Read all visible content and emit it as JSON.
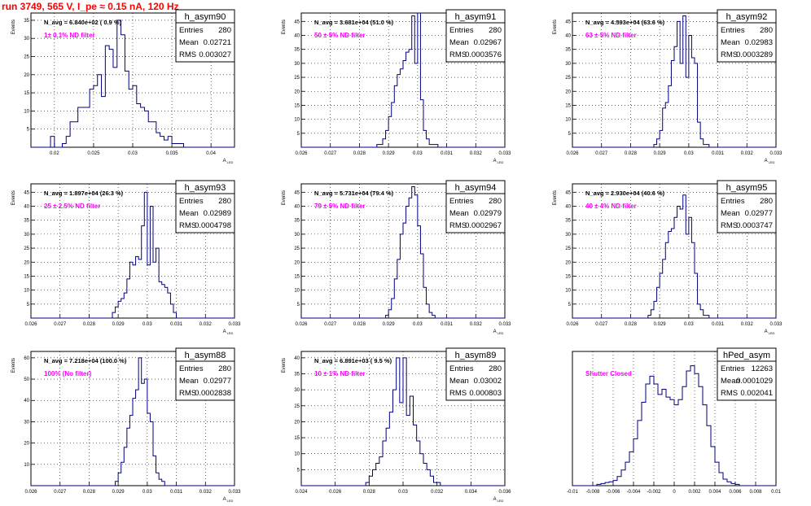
{
  "page_title": "run 3749,   565 V, I_pe ≈ 0.15 nA, 120 Hz",
  "colors": {
    "histogram": "#000080",
    "annotation_text": "#ff00ff",
    "title_text": "#ff0000",
    "grid": "#000000"
  },
  "chart_data": [
    {
      "type": "bar",
      "name": "h_asym90",
      "ylabel": "Events",
      "xlabel": "A_{LED}",
      "nstat": "N_avg = 6.840e+02 ( 0.9 %)",
      "filter_label": "1± 0.1% ND filter",
      "stats": {
        "entries": "280",
        "mean": "0.02721",
        "rms": "0.003027"
      },
      "stat_labels": {
        "entries": "Entries",
        "mean": "Mean",
        "rms": "RMS"
      },
      "xlim": [
        0.017,
        0.043
      ],
      "ylim": [
        0,
        37
      ],
      "xticks": [
        0.02,
        0.025,
        0.03,
        0.035,
        0.04
      ],
      "xtick_labels": [
        "0.02",
        "0.025",
        "0.03",
        "0.035",
        "0.04"
      ],
      "yticks": [
        5,
        10,
        15,
        20,
        25,
        30,
        35
      ],
      "ytick_labels": [
        "5",
        "10",
        "15",
        "20",
        "25",
        "30",
        "35"
      ],
      "bin_edges": [
        0.017,
        0.0195,
        0.02,
        0.0205,
        0.021,
        0.0215,
        0.022,
        0.0225,
        0.023,
        0.0235,
        0.024,
        0.0245,
        0.025,
        0.0255,
        0.026,
        0.0265,
        0.027,
        0.0275,
        0.028,
        0.0285,
        0.029,
        0.0295,
        0.03,
        0.0305,
        0.031,
        0.0315,
        0.032,
        0.0325,
        0.033,
        0.0335,
        0.034,
        0.0345,
        0.035,
        0.0355,
        0.036,
        0.0365,
        0.043
      ],
      "counts": [
        0,
        3,
        0,
        0,
        1,
        3,
        7,
        7,
        11,
        11,
        11,
        16,
        17,
        20,
        14,
        28,
        27,
        22,
        35,
        31,
        21,
        16,
        17,
        12,
        11,
        10,
        7,
        7,
        4,
        3,
        2,
        3,
        1,
        1,
        1,
        0
      ]
    },
    {
      "type": "bar",
      "name": "h_asym91",
      "ylabel": "Events",
      "xlabel": "A_{LED}",
      "nstat": "N_avg = 3.681e+04 (51.0 %)",
      "filter_label": "50 ± 5% ND filter",
      "stats": {
        "entries": "280",
        "mean": "0.02967",
        "rms": "0.0003576"
      },
      "stat_labels": {
        "entries": "Entries",
        "mean": "Mean",
        "rms": "RMS"
      },
      "xlim": [
        0.026,
        0.033
      ],
      "ylim": [
        0,
        48
      ],
      "xticks": [
        0.026,
        0.027,
        0.028,
        0.029,
        0.03,
        0.031,
        0.032,
        0.033
      ],
      "xtick_labels": [
        "0.026",
        "0.027",
        "0.028",
        "0.029",
        "0.03",
        "0.031",
        "0.032",
        "0.033"
      ],
      "yticks": [
        5,
        10,
        15,
        20,
        25,
        30,
        35,
        40,
        45
      ],
      "ytick_labels": [
        "5",
        "10",
        "15",
        "20",
        "25",
        "30",
        "35",
        "40",
        "45"
      ],
      "bin_edges": [
        0.026,
        0.0286,
        0.0287,
        0.0288,
        0.0289,
        0.029,
        0.0291,
        0.0292,
        0.0293,
        0.0294,
        0.0295,
        0.0296,
        0.0297,
        0.0298,
        0.0299,
        0.03,
        0.0301,
        0.0302,
        0.0303,
        0.0304,
        0.0305,
        0.0306,
        0.0307,
        0.0308,
        0.033
      ],
      "counts": [
        0,
        1,
        1,
        3,
        6,
        11,
        16,
        22,
        26,
        28,
        31,
        34,
        35,
        47,
        30,
        48,
        17,
        6,
        3,
        1,
        1,
        1,
        0,
        0
      ]
    },
    {
      "type": "bar",
      "name": "h_asym92",
      "ylabel": "Events",
      "xlabel": "A_{LED}",
      "nstat": "N_avg = 4.593e+04 (63.6 %)",
      "filter_label": "63 ± 5% ND filter",
      "stats": {
        "entries": "280",
        "mean": "0.02983",
        "rms": "0.0003289"
      },
      "stat_labels": {
        "entries": "Entries",
        "mean": "Mean",
        "rms": "RMS"
      },
      "xlim": [
        0.026,
        0.033
      ],
      "ylim": [
        0,
        48
      ],
      "xticks": [
        0.026,
        0.027,
        0.028,
        0.029,
        0.03,
        0.031,
        0.032,
        0.033
      ],
      "xtick_labels": [
        "0.026",
        "0.027",
        "0.028",
        "0.029",
        "0.03",
        "0.031",
        "0.032",
        "0.033"
      ],
      "yticks": [
        5,
        10,
        15,
        20,
        25,
        30,
        35,
        40,
        45
      ],
      "ytick_labels": [
        "5",
        "10",
        "15",
        "20",
        "25",
        "30",
        "35",
        "40",
        "45"
      ],
      "bin_edges": [
        0.026,
        0.0288,
        0.0289,
        0.029,
        0.0291,
        0.0292,
        0.0293,
        0.0294,
        0.0295,
        0.0296,
        0.0297,
        0.0298,
        0.0299,
        0.03,
        0.0301,
        0.0302,
        0.0303,
        0.0304,
        0.0305,
        0.0306,
        0.0307,
        0.033
      ],
      "counts": [
        0,
        1,
        3,
        6,
        14,
        16,
        22,
        31,
        36,
        45,
        30,
        47,
        25,
        40,
        32,
        30,
        9,
        3,
        1,
        1,
        0
      ]
    },
    {
      "type": "bar",
      "name": "h_asym93",
      "ylabel": "Events",
      "xlabel": "A_{LED}",
      "nstat": "N_avg = 1.897e+04 (26.3 %)",
      "filter_label": "25 ± 2.5% ND filter",
      "stats": {
        "entries": "280",
        "mean": "0.02989",
        "rms": "0.0004798"
      },
      "stat_labels": {
        "entries": "Entries",
        "mean": "Mean",
        "rms": "RMS"
      },
      "xlim": [
        0.026,
        0.033
      ],
      "ylim": [
        0,
        48
      ],
      "xticks": [
        0.026,
        0.027,
        0.028,
        0.029,
        0.03,
        0.031,
        0.032,
        0.033
      ],
      "xtick_labels": [
        "0.026",
        "0.027",
        "0.028",
        "0.029",
        "0.03",
        "0.031",
        "0.032",
        "0.033"
      ],
      "yticks": [
        5,
        10,
        15,
        20,
        25,
        30,
        35,
        40,
        45
      ],
      "ytick_labels": [
        "5",
        "10",
        "15",
        "20",
        "25",
        "30",
        "35",
        "40",
        "45"
      ],
      "bin_edges": [
        0.026,
        0.0288,
        0.0289,
        0.029,
        0.0291,
        0.0292,
        0.0293,
        0.0294,
        0.0295,
        0.0296,
        0.0297,
        0.0298,
        0.0299,
        0.03,
        0.0301,
        0.0302,
        0.0303,
        0.0304,
        0.0305,
        0.0306,
        0.0307,
        0.0308,
        0.0309,
        0.031,
        0.033
      ],
      "counts": [
        0,
        2,
        4,
        6,
        7,
        9,
        14,
        20,
        19,
        22,
        21,
        33,
        45,
        19,
        40,
        20,
        25,
        13,
        12,
        11,
        9,
        5,
        2,
        0
      ]
    },
    {
      "type": "bar",
      "name": "h_asym94",
      "ylabel": "Events",
      "xlabel": "A_{LED}",
      "nstat": "N_avg = 5.731e+04 (79.4 %)",
      "filter_label": "79 ± 5% ND filter",
      "stats": {
        "entries": "280",
        "mean": "0.02979",
        "rms": "0.0002967"
      },
      "stat_labels": {
        "entries": "Entries",
        "mean": "Mean",
        "rms": "RMS"
      },
      "xlim": [
        0.026,
        0.033
      ],
      "ylim": [
        0,
        48
      ],
      "xticks": [
        0.026,
        0.027,
        0.028,
        0.029,
        0.03,
        0.031,
        0.032,
        0.033
      ],
      "xtick_labels": [
        "0.026",
        "0.027",
        "0.028",
        "0.029",
        "0.03",
        "0.031",
        "0.032",
        "0.033"
      ],
      "yticks": [
        5,
        10,
        15,
        20,
        25,
        30,
        35,
        40,
        45
      ],
      "ytick_labels": [
        "5",
        "10",
        "15",
        "20",
        "25",
        "30",
        "35",
        "40",
        "45"
      ],
      "bin_edges": [
        0.026,
        0.0289,
        0.029,
        0.0291,
        0.0292,
        0.0293,
        0.0294,
        0.0295,
        0.0296,
        0.0297,
        0.0298,
        0.0299,
        0.03,
        0.0301,
        0.0302,
        0.0303,
        0.0304,
        0.0305,
        0.0306,
        0.033
      ],
      "counts": [
        0,
        1,
        3,
        7,
        14,
        21,
        30,
        34,
        40,
        43,
        47,
        44,
        33,
        23,
        11,
        5,
        2,
        1,
        0
      ]
    },
    {
      "type": "bar",
      "name": "h_asym95",
      "ylabel": "Events",
      "xlabel": "A_{LED}",
      "nstat": "N_avg = 2.930e+04 (40.6 %)",
      "filter_label": "40 ± 4% ND filter",
      "stats": {
        "entries": "280",
        "mean": "0.02977",
        "rms": "0.0003747"
      },
      "stat_labels": {
        "entries": "Entries",
        "mean": "Mean",
        "rms": "RMS"
      },
      "xlim": [
        0.026,
        0.033
      ],
      "ylim": [
        0,
        48
      ],
      "xticks": [
        0.026,
        0.027,
        0.028,
        0.029,
        0.03,
        0.031,
        0.032,
        0.033
      ],
      "xtick_labels": [
        "0.026",
        "0.027",
        "0.028",
        "0.029",
        "0.03",
        "0.031",
        "0.032",
        "0.033"
      ],
      "yticks": [
        5,
        10,
        15,
        20,
        25,
        30,
        35,
        40,
        45
      ],
      "ytick_labels": [
        "5",
        "10",
        "15",
        "20",
        "25",
        "30",
        "35",
        "40",
        "45"
      ],
      "bin_edges": [
        0.026,
        0.0286,
        0.0287,
        0.0288,
        0.0289,
        0.029,
        0.0291,
        0.0292,
        0.0293,
        0.0294,
        0.0295,
        0.0296,
        0.0297,
        0.0298,
        0.0299,
        0.03,
        0.0301,
        0.0302,
        0.0303,
        0.0304,
        0.0305,
        0.0306,
        0.0307,
        0.0308,
        0.033
      ],
      "counts": [
        0,
        1,
        3,
        6,
        11,
        16,
        21,
        27,
        31,
        32,
        36,
        40,
        39,
        44,
        30,
        36,
        27,
        16,
        5,
        3,
        1,
        1,
        0,
        0
      ]
    },
    {
      "type": "bar",
      "name": "h_asym88",
      "ylabel": "Events",
      "xlabel": "A_{LED}",
      "nstat": "N_avg = 7.218e+04 (100.0 %)",
      "filter_label": "100% (No filter)",
      "stats": {
        "entries": "280",
        "mean": "0.02977",
        "rms": "0.0002838"
      },
      "stat_labels": {
        "entries": "Entries",
        "mean": "Mean",
        "rms": "RMS"
      },
      "xlim": [
        0.026,
        0.033
      ],
      "ylim": [
        0,
        63
      ],
      "xticks": [
        0.026,
        0.027,
        0.028,
        0.029,
        0.03,
        0.031,
        0.032,
        0.033
      ],
      "xtick_labels": [
        "0.026",
        "0.027",
        "0.028",
        "0.029",
        "0.03",
        "0.031",
        "0.032",
        "0.033"
      ],
      "yticks": [
        10,
        20,
        30,
        40,
        50,
        60
      ],
      "ytick_labels": [
        "10",
        "20",
        "30",
        "40",
        "50",
        "60"
      ],
      "bin_edges": [
        0.026,
        0.0289,
        0.029,
        0.0291,
        0.0292,
        0.0293,
        0.0294,
        0.0295,
        0.0296,
        0.0297,
        0.0298,
        0.0299,
        0.03,
        0.0301,
        0.0302,
        0.0303,
        0.0304,
        0.0305,
        0.0306,
        0.033
      ],
      "counts": [
        0,
        2,
        6,
        11,
        18,
        27,
        33,
        41,
        45,
        60,
        48,
        50,
        34,
        30,
        14,
        6,
        3,
        2,
        0
      ]
    },
    {
      "type": "bar",
      "name": "h_asym89",
      "ylabel": "Events",
      "xlabel": "A_{LED}",
      "nstat": "N_avg = 6.891e+03 ( 9.5 %)",
      "filter_label": "10 ± 1% ND filter",
      "stats": {
        "entries": "280",
        "mean": "0.03002",
        "rms": "0.000803"
      },
      "stat_labels": {
        "entries": "Entries",
        "mean": "Mean",
        "rms": "RMS"
      },
      "xlim": [
        0.024,
        0.036
      ],
      "ylim": [
        0,
        42
      ],
      "xticks": [
        0.024,
        0.026,
        0.028,
        0.03,
        0.032,
        0.034,
        0.036
      ],
      "xtick_labels": [
        "0.024",
        "0.026",
        "0.028",
        "0.03",
        "0.032",
        "0.034",
        "0.036"
      ],
      "yticks": [
        5,
        10,
        15,
        20,
        25,
        30,
        35,
        40
      ],
      "ytick_labels": [
        "5",
        "10",
        "15",
        "20",
        "25",
        "30",
        "35",
        "40"
      ],
      "bin_edges": [
        0.024,
        0.0278,
        0.028,
        0.0282,
        0.0284,
        0.0286,
        0.0288,
        0.029,
        0.0292,
        0.0294,
        0.0296,
        0.0298,
        0.03,
        0.0302,
        0.0304,
        0.0306,
        0.0308,
        0.031,
        0.0312,
        0.0314,
        0.0316,
        0.0318,
        0.032,
        0.0322,
        0.036
      ],
      "counts": [
        0,
        1,
        3,
        5,
        7,
        9,
        14,
        18,
        23,
        30,
        40,
        26,
        40,
        22,
        28,
        19,
        14,
        10,
        7,
        5,
        3,
        1,
        1,
        0
      ]
    },
    {
      "type": "bar",
      "name": "hPed_asym",
      "ylabel": "",
      "xlabel": "",
      "nstat": "",
      "filter_label": "Shutter Closed",
      "stats": {
        "entries": "12263",
        "mean": "0.0001029",
        "rms": "0.002041"
      },
      "stat_labels": {
        "entries": "Entries",
        "mean": "Mean",
        "rms": "RMS"
      },
      "xlim": [
        -0.01,
        0.01
      ],
      "ylim": [
        0,
        515
      ],
      "xticks": [
        -0.01,
        -0.008,
        -0.006,
        -0.004,
        -0.002,
        0,
        0.002,
        0.004,
        0.006,
        0.008,
        0.01
      ],
      "xtick_labels": [
        "-0.01",
        "-0.008",
        "-0.006",
        "-0.004",
        "-0.002",
        "0",
        "0.002",
        "0.004",
        "0.006",
        "0.008",
        "0.01"
      ],
      "yticks": [],
      "ytick_labels": [],
      "bin_edges": [
        -0.01,
        -0.0076,
        -0.0072,
        -0.0068,
        -0.0064,
        -0.006,
        -0.0056,
        -0.0052,
        -0.0048,
        -0.0044,
        -0.004,
        -0.0036,
        -0.0032,
        -0.0028,
        -0.0024,
        -0.002,
        -0.0016,
        -0.0012,
        -0.0008,
        -0.0004,
        0,
        0.0004,
        0.0008,
        0.0012,
        0.0016,
        0.002,
        0.0024,
        0.0028,
        0.0032,
        0.0036,
        0.004,
        0.0044,
        0.0048,
        0.0052,
        0.0056,
        0.006,
        0.0064,
        0.01
      ],
      "counts": [
        0,
        5,
        8,
        12,
        15,
        20,
        35,
        60,
        90,
        130,
        180,
        250,
        320,
        390,
        420,
        390,
        350,
        370,
        340,
        330,
        310,
        330,
        380,
        440,
        460,
        430,
        380,
        310,
        230,
        150,
        90,
        50,
        25,
        15,
        8,
        5,
        0
      ]
    }
  ]
}
